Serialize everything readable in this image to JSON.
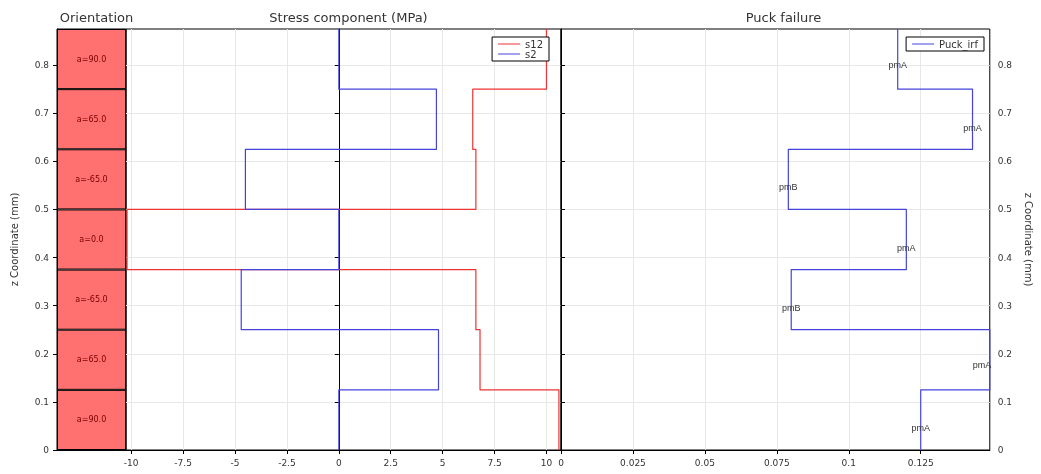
{
  "chart_data": [
    {
      "type": "bar",
      "title": "Orientation",
      "ylabel": "z Coordinate (mm)",
      "categories": [
        null
      ],
      "stacked": true,
      "ylim": [
        0,
        0.875
      ],
      "yticks": [
        0,
        0.1,
        0.2,
        0.3,
        0.4,
        0.5,
        0.6,
        0.7,
        0.8
      ],
      "tick_labels": "y",
      "series": [
        {
          "color": "#ff7070",
          "values": [
            0.125
          ]
        },
        {
          "color": "#ff7070",
          "values": [
            0.125
          ]
        },
        {
          "color": "#ff7070",
          "values": [
            0.125
          ]
        },
        {
          "color": "#ff7070",
          "values": [
            0.125
          ]
        },
        {
          "color": "#ff7070",
          "values": [
            0.125
          ]
        },
        {
          "color": "#ff7070",
          "values": [
            0.125
          ]
        },
        {
          "color": "#ff7070",
          "values": [
            0.125
          ]
        }
      ],
      "annotations": [
        "a=90.0",
        "a=65.0",
        "a=-65.0",
        "a=0.0",
        "a=-65.0",
        "a=65.0",
        "a=90.0"
      ]
    },
    {
      "type": "line",
      "title": "Stress component (MPa)",
      "xlim": [
        -10.25,
        10.7
      ],
      "xticks": [
        -10,
        -7.5,
        -5,
        -2.5,
        0,
        2.5,
        5,
        7.5,
        10
      ],
      "ylim": [
        0,
        0.875
      ],
      "yticks": [
        0,
        0.1,
        0.2,
        0.3,
        0.4,
        0.5,
        0.6,
        0.7,
        0.8
      ],
      "tick_labels": "x",
      "grid": true,
      "legend": "top right",
      "series": [
        {
          "name": "s12",
          "color": "#ee3333",
          "x": [
            10.6,
            10.6,
            6.8,
            6.8,
            6.6,
            6.6,
            -10.2,
            -10.2,
            6.6,
            6.6,
            6.45,
            6.45,
            10.0,
            10.0
          ],
          "values": [
            0,
            0.125,
            0.125,
            0.25,
            0.25,
            0.375,
            0.375,
            0.5,
            0.5,
            0.625,
            0.625,
            0.75,
            0.75,
            0.875
          ]
        },
        {
          "name": "s2",
          "color": "#4444dd",
          "x": [
            0,
            0,
            4.8,
            4.8,
            -4.7,
            -4.7,
            0,
            0,
            -4.5,
            -4.5,
            4.7,
            4.7,
            0,
            0
          ],
          "values": [
            0,
            0.125,
            0.125,
            0.25,
            0.25,
            0.375,
            0.375,
            0.5,
            0.5,
            0.625,
            0.625,
            0.75,
            0.75,
            0.875
          ]
        }
      ]
    },
    {
      "type": "line",
      "title": "Puck failure",
      "ylabel": "z Coordinate (mm)",
      "xlim": [
        0,
        0.149
      ],
      "xticks": [
        0,
        0.025,
        0.05,
        0.075,
        0.1,
        0.125
      ],
      "ylim": [
        0,
        0.875
      ],
      "yticks": [
        0,
        0.1,
        0.2,
        0.3,
        0.4,
        0.5,
        0.6,
        0.7,
        0.8
      ],
      "grid": true,
      "legend": "top right",
      "series": [
        {
          "name": "Puck_irf",
          "color": "#4444dd",
          "x": [
            0.125,
            0.125,
            0.149,
            0.149,
            0.08,
            0.08,
            0.12,
            0.12,
            0.079,
            0.079,
            0.143,
            0.143,
            0.117,
            0.117
          ],
          "values": [
            0,
            0.125,
            0.125,
            0.25,
            0.25,
            0.375,
            0.375,
            0.5,
            0.5,
            0.625,
            0.625,
            0.75,
            0.75,
            0.875
          ]
        }
      ],
      "annotations": [
        {
          "text": "pmA",
          "x": 0.125,
          "y": 0.046
        },
        {
          "text": "pmA",
          "x": 0.149,
          "y": 0.177
        },
        {
          "text": "pmB",
          "x": 0.08,
          "y": 0.296
        },
        {
          "text": "pmA",
          "x": 0.12,
          "y": 0.42
        },
        {
          "text": "pmB",
          "x": 0.079,
          "y": 0.547
        },
        {
          "text": "pmA",
          "x": 0.143,
          "y": 0.67
        },
        {
          "text": "pmA",
          "x": 0.117,
          "y": 0.8
        }
      ]
    }
  ]
}
